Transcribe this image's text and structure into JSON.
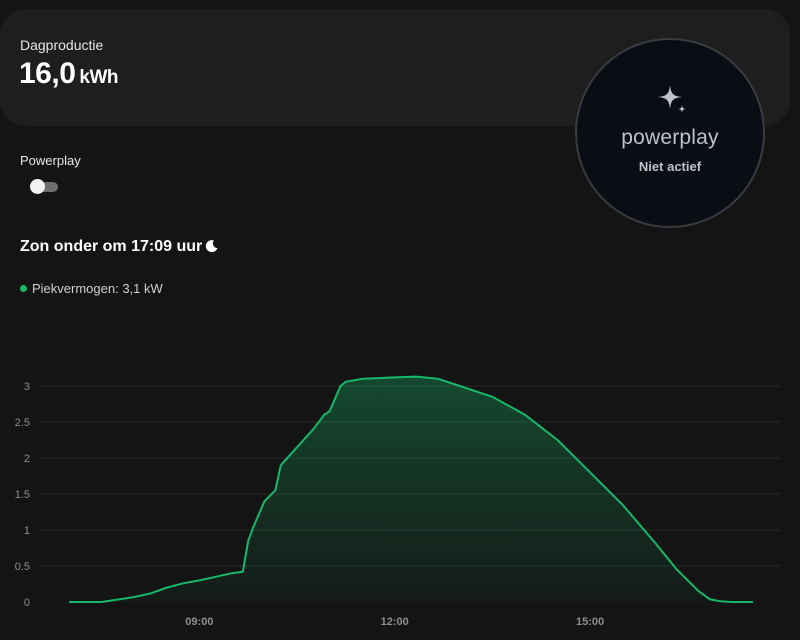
{
  "production": {
    "label": "Dagproductie",
    "value": "16,0",
    "unit": "kWh"
  },
  "powerplay": {
    "brand": "powerplay",
    "status": "Niet actief",
    "toggle_label": "Powerplay",
    "toggle_on": false,
    "icon": "sparkle-icon"
  },
  "sunset": {
    "text": "Zon onder om 17:09 uur",
    "icon": "moon-icon"
  },
  "legend": {
    "label": "Piekvermogen: 3,1 kW",
    "color": "#16b86a"
  },
  "chart_data": {
    "type": "area",
    "series": [
      {
        "name": "Piekvermogen",
        "color": "#16b86a",
        "x": [
          "07:00",
          "07:30",
          "08:00",
          "08:15",
          "08:30",
          "08:45",
          "09:00",
          "09:15",
          "09:30",
          "09:40",
          "09:45",
          "09:50",
          "10:00",
          "10:10",
          "10:15",
          "10:30",
          "10:45",
          "10:55",
          "11:00",
          "11:10",
          "11:15",
          "11:30",
          "12:00",
          "12:20",
          "12:40",
          "12:50",
          "13:00",
          "13:30",
          "14:00",
          "14:30",
          "15:00",
          "15:30",
          "16:00",
          "16:20",
          "16:40",
          "16:50",
          "17:00",
          "17:10",
          "17:30"
        ],
        "values": [
          0,
          0,
          0.07,
          0.12,
          0.2,
          0.26,
          0.3,
          0.35,
          0.4,
          0.42,
          0.85,
          1.05,
          1.4,
          1.55,
          1.9,
          2.15,
          2.4,
          2.6,
          2.65,
          3.0,
          3.06,
          3.1,
          3.12,
          3.13,
          3.1,
          3.05,
          3.0,
          2.85,
          2.6,
          2.25,
          1.8,
          1.35,
          0.82,
          0.45,
          0.15,
          0.04,
          0.01,
          0,
          0
        ]
      }
    ],
    "y_ticks": [
      "0",
      "0.5",
      "1",
      "1.5",
      "2",
      "2.5",
      "3"
    ],
    "x_ticks": [
      "09:00",
      "12:00",
      "15:00"
    ],
    "ylim": [
      0,
      3.5
    ],
    "xlim": [
      "06:35",
      "17:55"
    ],
    "grid": true
  }
}
